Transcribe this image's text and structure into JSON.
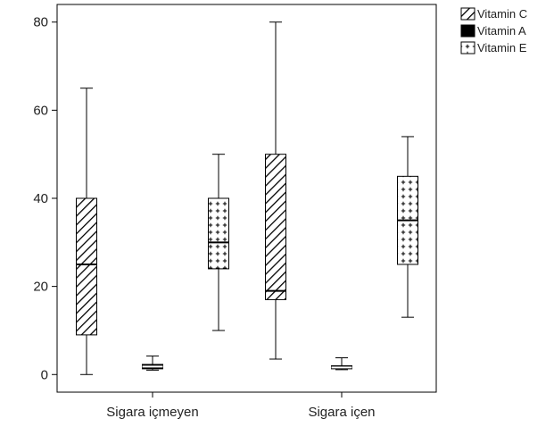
{
  "chart_data": {
    "type": "boxplot",
    "categories": [
      "Sigara içmeyen",
      "Sigara içen"
    ],
    "ylim": [
      -4,
      84
    ],
    "yticks": [
      0,
      20,
      40,
      60,
      80
    ],
    "grid": false,
    "legend_position": "top-right",
    "series": [
      {
        "name": "Vitamin C",
        "pattern": "diagonal-hatch",
        "boxes": [
          {
            "category": "Sigara içmeyen",
            "min": 0,
            "q1": 9,
            "median": 25,
            "q3": 40,
            "max": 65
          },
          {
            "category": "Sigara içen",
            "min": 3.5,
            "q1": 17,
            "median": 19,
            "q3": 50,
            "max": 80
          }
        ]
      },
      {
        "name": "Vitamin A",
        "pattern": "solid-black",
        "boxes": [
          {
            "category": "Sigara içmeyen",
            "min": 1,
            "q1": 1.3,
            "median": 1.8,
            "q3": 2.3,
            "max": 4.2
          },
          {
            "category": "Sigara içen",
            "min": 1.1,
            "q1": 1.3,
            "median": 1.6,
            "q3": 2.0,
            "max": 3.8
          }
        ]
      },
      {
        "name": "Vitamin E",
        "pattern": "plus-dots",
        "boxes": [
          {
            "category": "Sigara içmeyen",
            "min": 10,
            "q1": 24,
            "median": 30,
            "q3": 40,
            "max": 50
          },
          {
            "category": "Sigara içen",
            "min": 13,
            "q1": 25,
            "median": 35,
            "q3": 45,
            "max": 54
          }
        ]
      }
    ]
  }
}
